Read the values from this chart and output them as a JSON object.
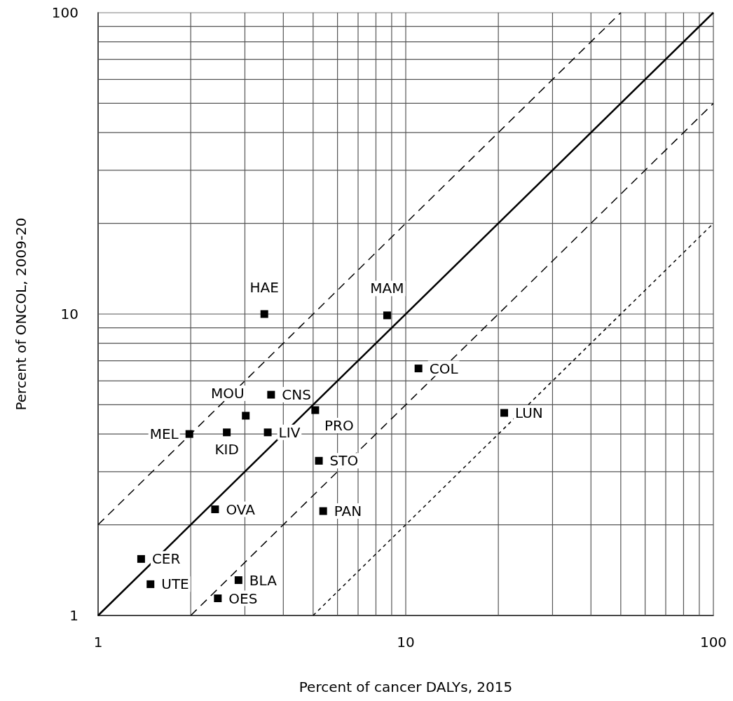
{
  "chart_data": {
    "type": "scatter",
    "xlabel": "Percent of cancer DALYs, 2015",
    "ylabel": "Percent of ONCOL, 2009-20",
    "log": "xy",
    "grid": true,
    "xlim": [
      1,
      100
    ],
    "ylim": [
      1,
      100
    ],
    "xticks": [
      1,
      {
        "value": 2,
        "label": null
      },
      {
        "value": 3,
        "label": null
      },
      {
        "value": 4,
        "label": null
      },
      {
        "value": 5,
        "label": null
      },
      {
        "value": 6,
        "label": null
      },
      {
        "value": 7,
        "label": null
      },
      {
        "value": 8,
        "label": null
      },
      {
        "value": 9,
        "label": null
      },
      10,
      {
        "value": 20,
        "label": null
      },
      {
        "value": 30,
        "label": null
      },
      {
        "value": 40,
        "label": null
      },
      {
        "value": 50,
        "label": null
      },
      {
        "value": 60,
        "label": null
      },
      {
        "value": 70,
        "label": null
      },
      {
        "value": 80,
        "label": null
      },
      {
        "value": 90,
        "label": null
      },
      100
    ],
    "yticks": [
      1,
      {
        "value": 2,
        "label": null
      },
      {
        "value": 3,
        "label": null
      },
      {
        "value": 4,
        "label": null
      },
      {
        "value": 5,
        "label": null
      },
      {
        "value": 6,
        "label": null
      },
      {
        "value": 7,
        "label": null
      },
      {
        "value": 8,
        "label": null
      },
      {
        "value": 9,
        "label": null
      },
      10,
      {
        "value": 20,
        "label": null
      },
      {
        "value": 30,
        "label": null
      },
      {
        "value": 40,
        "label": null
      },
      {
        "value": 50,
        "label": null
      },
      {
        "value": 60,
        "label": null
      },
      {
        "value": 70,
        "label": null
      },
      {
        "value": 80,
        "label": null
      },
      {
        "value": 90,
        "label": null
      },
      100
    ],
    "series": [
      {
        "color": "#000000",
        "marker": "square",
        "x": [
          3.47,
          8.7,
          11.0,
          20.9,
          3.65,
          5.08,
          3.02,
          1.98,
          2.62,
          3.56,
          5.22,
          2.4,
          5.39,
          1.38,
          1.48,
          2.86,
          2.45
        ],
        "values": [
          10.0,
          9.9,
          6.6,
          4.7,
          5.4,
          4.8,
          4.6,
          4.0,
          4.05,
          4.05,
          3.26,
          2.25,
          2.22,
          1.54,
          1.27,
          1.31,
          1.14
        ],
        "value_labels": [
          "HAE",
          "MAM",
          "COL",
          "LUN",
          "CNS",
          "PRO",
          "MOU",
          "MEL",
          "KID",
          "LIV",
          "STO",
          "OVA",
          "PAN",
          "CER",
          "UTE",
          "BLA",
          "OES"
        ]
      },
      {
        "type": "line",
        "color": "#000000",
        "line_style": "solid",
        "marker": "none",
        "x": [
          1,
          100
        ],
        "values": [
          1,
          100
        ]
      },
      {
        "type": "line",
        "color": "#000000",
        "line_style": "dashed",
        "marker": "none",
        "x": [
          1,
          50
        ],
        "values": [
          2,
          100
        ]
      },
      {
        "type": "line",
        "color": "#000000",
        "line_style": "dashed",
        "marker": "none",
        "x": [
          2,
          100
        ],
        "values": [
          1,
          50
        ]
      },
      {
        "type": "line",
        "color": "#000000",
        "line_style": "dotted",
        "marker": "none",
        "x": [
          5,
          100
        ],
        "values": [
          1,
          20
        ]
      }
    ]
  }
}
